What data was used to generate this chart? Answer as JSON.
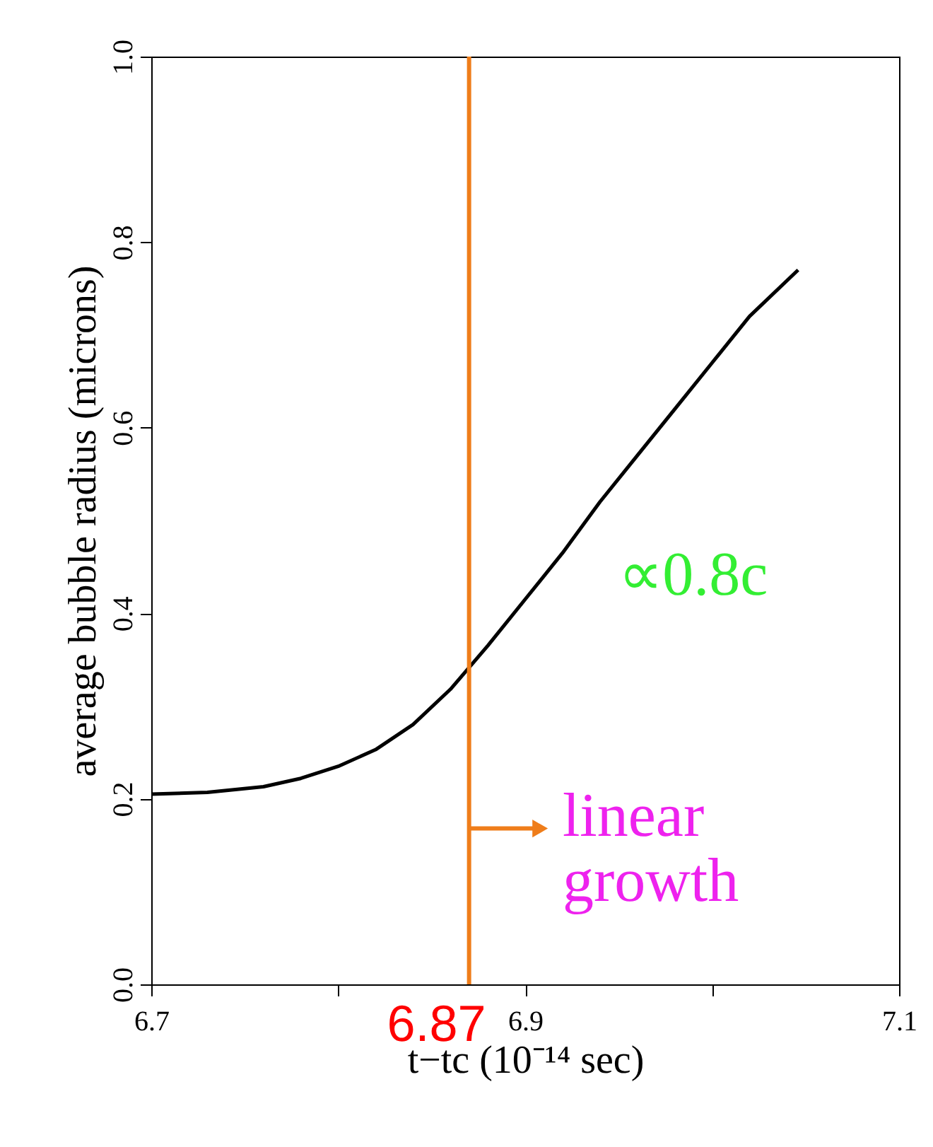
{
  "chart_data": {
    "type": "line",
    "xlabel": "t−tc (10⁻¹⁴ sec)",
    "ylabel": "average bubble radius (microns)",
    "x": [
      6.7,
      6.73,
      6.76,
      6.78,
      6.8,
      6.82,
      6.84,
      6.86,
      6.88,
      6.9,
      6.92,
      6.94,
      6.96,
      6.98,
      7.0,
      7.02,
      7.046
    ],
    "series": [
      {
        "color": "#000000",
        "values": [
          0.205,
          0.207,
          0.213,
          0.222,
          0.235,
          0.253,
          0.28,
          0.318,
          0.365,
          0.415,
          0.465,
          0.52,
          0.57,
          0.62,
          0.67,
          0.72,
          0.77
        ]
      }
    ],
    "xlim": [
      6.7,
      7.1
    ],
    "xticks": [
      6.7,
      {
        "value": 6.8,
        "label": null
      },
      6.9,
      {
        "value": 7.0,
        "label": null
      },
      7.1
    ],
    "ylim": [
      0,
      1
    ],
    "yticks": [
      {
        "value": 0,
        "label": "0.0"
      },
      0.2,
      0.4,
      0.6,
      0.8,
      {
        "value": 1,
        "label": "1.0"
      }
    ],
    "grid": false,
    "marker": "none",
    "line_style": "solid",
    "ref_lines": [
      {
        "axis": "x",
        "value": 6.87,
        "label": "6.87",
        "color": "#ef7d1a"
      }
    ],
    "annotations": [
      "∝0.8c",
      "linear\ngrowth"
    ]
  }
}
